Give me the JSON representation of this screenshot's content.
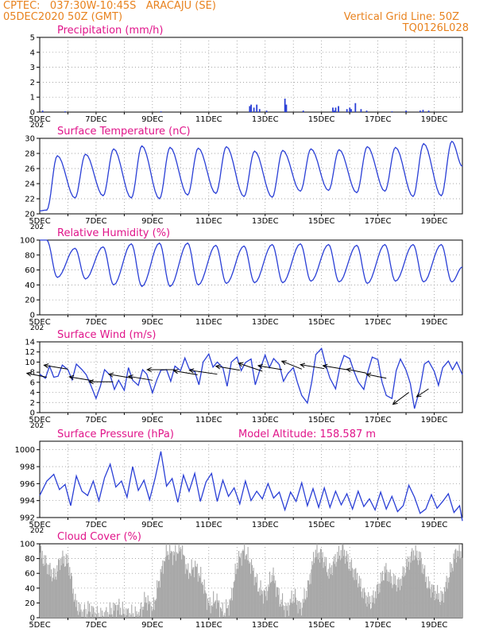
{
  "header": {
    "line1": "CPTEC:   037:30W-10:45S   ARACAJU (SE)",
    "line2_left": "05DEC2020 50Z (GMT)",
    "line2_right": "Vertical Grid Line: 50Z",
    "line3_right": "TQ0126L028"
  },
  "x_axis": {
    "tick_labels": [
      "5DEC",
      "7DEC",
      "9DEC",
      "11DEC",
      "13DEC",
      "15DEC",
      "17DEC",
      "19DEC"
    ],
    "cut_label": "202"
  },
  "colors": {
    "header": "#e8821e",
    "title": "#e0158a",
    "line": "#2a3fd6",
    "bar": "#2a3fd6",
    "cloud": "#a8a8a8",
    "wind_vector": "#000000"
  },
  "chart_data": [
    {
      "type": "bar",
      "title": "Precipitation (mm/h)",
      "ylim": [
        0,
        5
      ],
      "yticks": [
        0,
        1,
        2,
        3,
        4,
        5
      ],
      "x_unit": "days since 5DEC 00Z",
      "x": [
        0.1,
        0.9,
        4.3,
        7.45,
        7.5,
        7.6,
        7.7,
        7.8,
        8.05,
        8.7,
        8.75,
        9.35,
        10.4,
        10.45,
        10.5,
        10.6,
        10.9,
        11.0,
        11.05,
        11.2,
        11.4,
        11.6,
        12.5,
        13.0,
        13.5,
        13.6,
        13.8
      ],
      "values": [
        0.1,
        0.05,
        0.05,
        0.4,
        0.5,
        0.3,
        0.5,
        0.2,
        0.1,
        0.9,
        0.5,
        0.1,
        0.3,
        0.1,
        0.3,
        0.4,
        0.2,
        0.3,
        0.2,
        0.6,
        0.2,
        0.1,
        0.05,
        0.1,
        0.1,
        0.15,
        0.1
      ]
    },
    {
      "type": "line",
      "title": "Surface Temperature (nC)",
      "ylim": [
        20,
        30
      ],
      "yticks": [
        20,
        22,
        24,
        26,
        28,
        30
      ],
      "x_unit": "days since 5DEC 00Z",
      "daily_max": [
        27.7,
        27.9,
        28.6,
        29.0,
        28.8,
        28.7,
        28.9,
        28.3,
        28.4,
        28.6,
        28.5,
        28.9,
        28.8,
        29.3,
        29.6,
        29.3
      ],
      "daily_min": [
        20.5,
        22.1,
        22.4,
        22.1,
        22.0,
        22.5,
        22.7,
        22.3,
        22.2,
        23.0,
        23.1,
        22.8,
        23.0,
        22.3,
        22.4,
        22.6
      ],
      "end_value": 26.3
    },
    {
      "type": "line",
      "title": "Relative Humidity (%)",
      "ylim": [
        0,
        100
      ],
      "yticks": [
        0,
        20,
        40,
        60,
        80,
        100
      ],
      "x_unit": "days since 5DEC 00Z",
      "daily_max": [
        100,
        89,
        91,
        95,
        96,
        96,
        93,
        92,
        94,
        95,
        94,
        93,
        94,
        94,
        94,
        92
      ],
      "daily_min": [
        50,
        48,
        40,
        38,
        38,
        40,
        42,
        43,
        43,
        45,
        44,
        42,
        45,
        44,
        44,
        44
      ],
      "end_value": 64
    },
    {
      "type": "line",
      "title": "Surface Wind (m/s)",
      "ylim": [
        0,
        14
      ],
      "yticks": [
        0,
        2,
        4,
        6,
        8,
        10,
        12,
        14
      ],
      "x_unit": "days since 5DEC 00Z",
      "x": [
        0,
        0.2,
        0.35,
        0.5,
        0.65,
        0.8,
        1.0,
        1.15,
        1.3,
        1.5,
        1.65,
        1.8,
        2.0,
        2.15,
        2.3,
        2.5,
        2.65,
        2.8,
        3.0,
        3.15,
        3.3,
        3.5,
        3.65,
        3.8,
        4.0,
        4.15,
        4.3,
        4.5,
        4.65,
        4.8,
        5.0,
        5.15,
        5.3,
        5.5,
        5.65,
        5.8,
        6.0,
        6.15,
        6.3,
        6.5,
        6.65,
        6.8,
        7.0,
        7.15,
        7.3,
        7.5,
        7.65,
        7.8,
        8.0,
        8.15,
        8.3,
        8.5,
        8.65,
        8.8,
        9.0,
        9.15,
        9.3,
        9.5,
        9.65,
        9.8,
        10.0,
        10.15,
        10.3,
        10.5,
        10.65,
        10.8,
        11.0,
        11.15,
        11.3,
        11.5,
        11.65,
        11.8,
        12.0,
        12.15,
        12.3,
        12.5,
        12.65,
        12.8,
        13.0,
        13.15,
        13.3,
        13.5,
        13.65,
        13.8,
        14.0,
        14.15,
        14.3,
        14.5,
        14.65,
        14.8,
        15.0
      ],
      "values": [
        7.6,
        6.8,
        9.2,
        7.0,
        7.2,
        9.4,
        8.5,
        6.5,
        9.6,
        8.5,
        7.5,
        5.6,
        2.8,
        5.2,
        8.5,
        7.4,
        4.6,
        6.4,
        4.4,
        8.9,
        6.4,
        5.4,
        8.5,
        7.6,
        3.9,
        6.4,
        8.4,
        8.5,
        6.2,
        9.2,
        8.3,
        10.8,
        8.7,
        8.1,
        5.5,
        10.0,
        11.6,
        9.0,
        10.0,
        8.9,
        5.2,
        10.0,
        11.0,
        8.3,
        9.9,
        10.6,
        5.5,
        8.2,
        11.4,
        8.9,
        10.7,
        9.5,
        6.2,
        7.7,
        8.9,
        5.9,
        3.4,
        1.9,
        6.0,
        11.5,
        12.7,
        9.4,
        6.8,
        4.7,
        8.9,
        11.3,
        10.7,
        8.2,
        6.1,
        4.6,
        8.2,
        11.0,
        10.5,
        6.0,
        3.4,
        2.8,
        8.3,
        10.6,
        8.4,
        5.8,
        0.8,
        4.9,
        9.6,
        10.2,
        8.2,
        5.4,
        8.9,
        10.2,
        8.5,
        10.0,
        7.5
      ],
      "vector_x": [
        0.25,
        1.0,
        1.9,
        2.6,
        3.3,
        4.0,
        4.8,
        5.6,
        6.3,
        7.1,
        7.9,
        8.6,
        9.3,
        10.1,
        10.9,
        11.6,
        12.3,
        13.1,
        13.8
      ],
      "vector_y": [
        7.0,
        8.6,
        6.3,
        6.1,
        6.8,
        6.4,
        8.5,
        7.5,
        7.6,
        8.4,
        8.2,
        8.5,
        8.6,
        8.7,
        8.5,
        7.8,
        6.8,
        4.0,
        4.7
      ],
      "vector_u": [
        -5,
        -6,
        -6,
        -6,
        -6,
        -6,
        -7,
        -6,
        -7,
        -6,
        -6,
        -6,
        -5,
        -6,
        -6,
        -5,
        -5,
        -4,
        -3
      ],
      "vector_v": [
        1,
        1,
        1,
        0,
        1,
        1,
        0,
        1,
        1,
        1,
        2,
        1,
        2,
        1,
        1,
        1,
        1,
        -3,
        -2
      ]
    },
    {
      "type": "line",
      "title": "Surface Pressure (hPa)",
      "annotation": "Model Altitude: 158.587 m",
      "ylim": [
        992,
        1001
      ],
      "yticks": [
        992,
        994,
        996,
        998,
        1000
      ],
      "x_unit": "days since 5DEC 00Z",
      "x": [
        0,
        0.25,
        0.5,
        0.7,
        0.9,
        1.1,
        1.3,
        1.5,
        1.7,
        1.9,
        2.1,
        2.3,
        2.5,
        2.7,
        2.9,
        3.1,
        3.3,
        3.5,
        3.7,
        3.9,
        4.1,
        4.3,
        4.5,
        4.7,
        4.9,
        5.1,
        5.3,
        5.5,
        5.7,
        5.9,
        6.1,
        6.3,
        6.5,
        6.7,
        6.9,
        7.1,
        7.3,
        7.5,
        7.7,
        7.9,
        8.1,
        8.3,
        8.5,
        8.7,
        8.9,
        9.1,
        9.3,
        9.5,
        9.7,
        9.9,
        10.1,
        10.3,
        10.5,
        10.7,
        10.9,
        11.1,
        11.3,
        11.5,
        11.7,
        11.9,
        12.1,
        12.3,
        12.5,
        12.7,
        12.9,
        13.1,
        13.3,
        13.5,
        13.7,
        13.9,
        14.1,
        14.3,
        14.5,
        14.7,
        14.9,
        15.0
      ],
      "values": [
        994.6,
        996.3,
        997.1,
        995.3,
        995.9,
        993.4,
        996.9,
        995.1,
        994.6,
        996.3,
        994.0,
        996.7,
        998.3,
        995.6,
        996.3,
        994.4,
        998.0,
        995.2,
        996.4,
        994.1,
        996.7,
        999.8,
        995.7,
        996.6,
        993.8,
        997.0,
        995.1,
        997.2,
        993.9,
        996.2,
        997.2,
        993.9,
        996.4,
        994.5,
        995.5,
        993.6,
        996.3,
        994.0,
        995.1,
        994.2,
        996.0,
        994.3,
        995.0,
        992.9,
        995.0,
        993.9,
        996.1,
        993.4,
        995.4,
        993.2,
        995.5,
        993.2,
        995.1,
        993.5,
        994.8,
        993.0,
        995.1,
        993.3,
        994.2,
        992.9,
        995.0,
        993.0,
        994.5,
        992.7,
        993.4,
        995.8,
        994.4,
        992.5,
        993.0,
        994.7,
        993.1,
        993.9,
        994.8,
        992.6,
        993.4,
        991.6
      ]
    },
    {
      "type": "bar",
      "title": "Cloud Cover (%)",
      "ylim": [
        0,
        100
      ],
      "yticks": [
        0,
        20,
        40,
        60,
        80,
        100
      ],
      "x_unit": "days since 5DEC 00Z",
      "x": [
        0.0,
        0.25,
        0.5,
        0.75,
        1.0,
        1.25,
        1.5,
        1.75,
        2.0,
        2.25,
        2.5,
        2.75,
        3.0,
        3.25,
        3.5,
        3.75,
        4.0,
        4.25,
        4.5,
        4.75,
        5.0,
        5.25,
        5.5,
        5.75,
        6.0,
        6.25,
        6.5,
        6.75,
        7.0,
        7.25,
        7.5,
        7.75,
        8.0,
        8.25,
        8.5,
        8.75,
        9.0,
        9.25,
        9.5,
        9.75,
        10.0,
        10.25,
        10.5,
        10.75,
        11.0,
        11.25,
        11.5,
        11.75,
        12.0,
        12.25,
        12.5,
        12.75,
        13.0,
        13.25,
        13.5,
        13.75,
        14.0,
        14.25,
        14.5,
        14.75
      ],
      "values": [
        88,
        70,
        55,
        80,
        75,
        20,
        5,
        12,
        3,
        2,
        8,
        15,
        6,
        4,
        3,
        25,
        10,
        55,
        90,
        85,
        95,
        60,
        70,
        50,
        15,
        25,
        5,
        20,
        75,
        92,
        70,
        40,
        30,
        60,
        25,
        10,
        30,
        12,
        40,
        88,
        85,
        60,
        80,
        92,
        70,
        55,
        30,
        20,
        40,
        65,
        50,
        45,
        70,
        88,
        80,
        45,
        35,
        25,
        55,
        88
      ]
    }
  ]
}
